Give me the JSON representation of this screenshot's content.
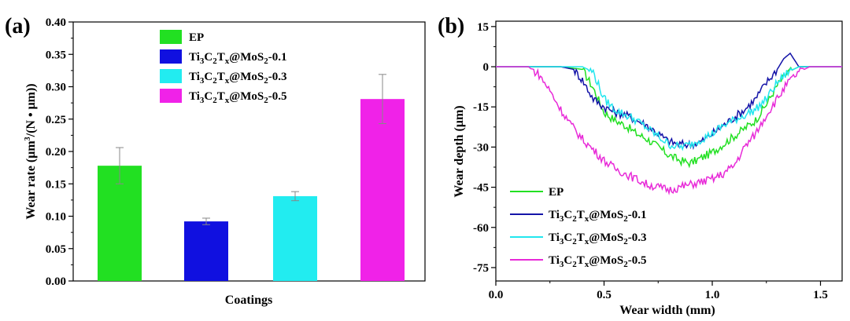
{
  "chart_data": [
    {
      "type": "bar",
      "panel_label": "(a)",
      "xlabel": "Coatings",
      "ylabel": "Wear rate (μm³/(N•μm))",
      "ylim": [
        0.0,
        0.4
      ],
      "yticks": [
        "0.00",
        "0.05",
        "0.10",
        "0.15",
        "0.20",
        "0.25",
        "0.30",
        "0.35",
        "0.40"
      ],
      "legend_position": "top-center",
      "series": [
        {
          "name": "EP",
          "value": 0.178,
          "error": 0.028,
          "color": "#22e022"
        },
        {
          "name": "Ti3C2Tx@MoS2-0.1",
          "value": 0.092,
          "error": 0.005,
          "color": "#1010e0"
        },
        {
          "name": "Ti3C2Tx@MoS2-0.3",
          "value": 0.131,
          "error": 0.007,
          "color": "#22ecf0"
        },
        {
          "name": "Ti3C2Tx@MoS2-0.5",
          "value": 0.281,
          "error": 0.038,
          "color": "#f022e8"
        }
      ]
    },
    {
      "type": "line",
      "panel_label": "(b)",
      "xlabel": "Wear width (mm)",
      "ylabel": "Wear depth (μm)",
      "xlim": [
        0.0,
        1.6
      ],
      "ylim": [
        -80,
        17
      ],
      "xticks": [
        "0.0",
        "0.5",
        "1.0",
        "1.5"
      ],
      "yticks": [
        "15",
        "0",
        "-15",
        "-30",
        "-45",
        "-60",
        "-75"
      ],
      "legend_position": "bottom-left",
      "series": [
        {
          "name": "EP",
          "color": "#22e022",
          "x": [
            0.0,
            0.3,
            0.4,
            0.45,
            0.5,
            0.55,
            0.6,
            0.65,
            0.7,
            0.75,
            0.8,
            0.85,
            0.9,
            0.95,
            1.0,
            1.05,
            1.1,
            1.15,
            1.2,
            1.25,
            1.3,
            1.35,
            1.4,
            1.45,
            1.6
          ],
          "y": [
            0,
            0,
            -1,
            -8,
            -17,
            -20,
            -22,
            -25,
            -27,
            -30,
            -33,
            -35,
            -36,
            -34,
            -32,
            -29,
            -26,
            -23,
            -20,
            -14,
            -7,
            -2,
            0,
            0,
            0
          ]
        },
        {
          "name": "Ti3C2Tx@MoS2-0.1",
          "color": "#1414a8",
          "x": [
            0.0,
            0.3,
            0.36,
            0.4,
            0.45,
            0.5,
            0.55,
            0.6,
            0.65,
            0.7,
            0.75,
            0.8,
            0.85,
            0.9,
            0.95,
            1.0,
            1.05,
            1.1,
            1.15,
            1.2,
            1.25,
            1.3,
            1.33,
            1.36,
            1.4,
            1.45,
            1.6
          ],
          "y": [
            0,
            0,
            -1,
            -5,
            -12,
            -15,
            -17,
            -18,
            -20,
            -22,
            -25,
            -28,
            -29,
            -29,
            -28,
            -25,
            -22,
            -19,
            -16,
            -12,
            -6,
            -1,
            3,
            5,
            0,
            0,
            0
          ]
        },
        {
          "name": "Ti3C2Tx@MoS2-0.3",
          "color": "#22e6ee",
          "x": [
            0.0,
            0.4,
            0.45,
            0.48,
            0.5,
            0.55,
            0.6,
            0.65,
            0.7,
            0.75,
            0.8,
            0.85,
            0.9,
            0.95,
            1.0,
            1.05,
            1.1,
            1.15,
            1.2,
            1.25,
            1.3,
            1.35,
            1.4,
            1.45,
            1.6
          ],
          "y": [
            0,
            0,
            -2,
            -8,
            -12,
            -16,
            -18,
            -20,
            -23,
            -26,
            -29,
            -30,
            -29,
            -27,
            -25,
            -22,
            -20,
            -18,
            -16,
            -12,
            -6,
            -2,
            0,
            0,
            0
          ]
        },
        {
          "name": "Ti3C2Tx@MoS2-0.5",
          "color": "#e82ad8",
          "x": [
            0.0,
            0.15,
            0.2,
            0.25,
            0.3,
            0.35,
            0.4,
            0.45,
            0.5,
            0.55,
            0.6,
            0.65,
            0.7,
            0.75,
            0.8,
            0.85,
            0.9,
            0.95,
            1.0,
            1.05,
            1.1,
            1.15,
            1.2,
            1.25,
            1.3,
            1.35,
            1.4,
            1.45,
            1.6
          ],
          "y": [
            0,
            0,
            -3,
            -9,
            -16,
            -22,
            -27,
            -31,
            -35,
            -38,
            -40,
            -42,
            -44,
            -45,
            -46,
            -45,
            -44,
            -43,
            -42,
            -40,
            -37,
            -30,
            -25,
            -18,
            -12,
            -6,
            -2,
            0,
            0
          ]
        }
      ]
    }
  ]
}
